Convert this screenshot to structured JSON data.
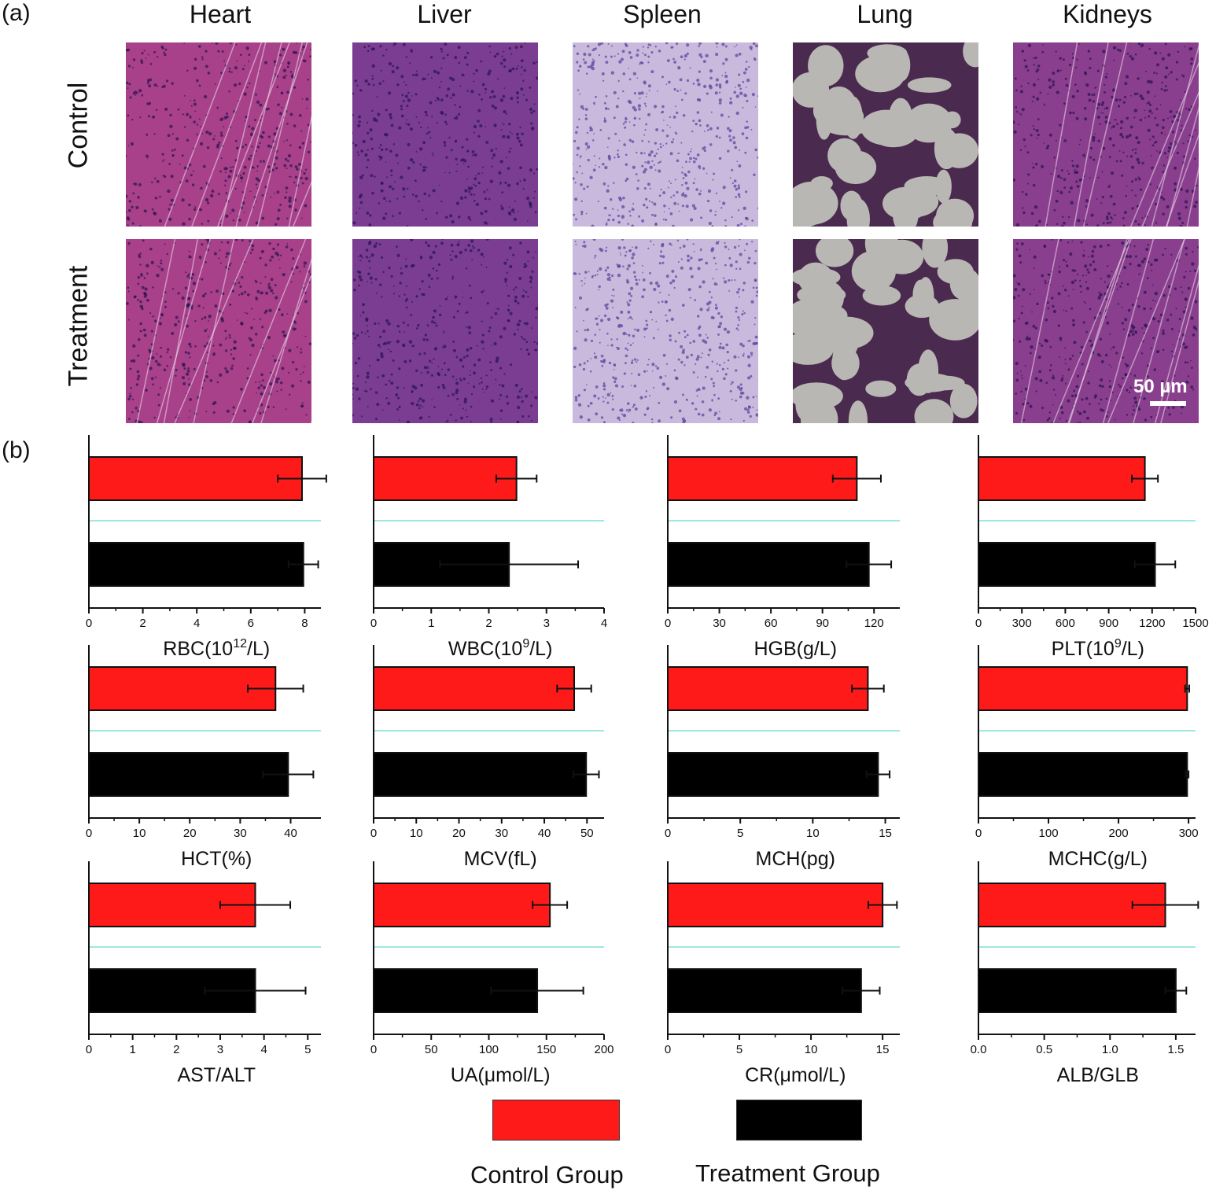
{
  "panel_labels": {
    "a": "(a)",
    "b": "(b)"
  },
  "histology": {
    "columns": [
      "Heart",
      "Liver",
      "Spleen",
      "Lung",
      "Kidneys"
    ],
    "rows": [
      "Control",
      "Treatment"
    ],
    "scale_bar": "50 µm"
  },
  "legend": {
    "control": {
      "label": "Control Group",
      "color": "#ff1a1a"
    },
    "treatment": {
      "label": "Treatment Group",
      "color": "#000000"
    }
  },
  "chart_data": [
    {
      "type": "bar",
      "xlabel_html": "RBC(10<sup>12</sup>/L)",
      "xlabel": "RBC(10^12/L)",
      "xlim": [
        0,
        8.6
      ],
      "ticks": [
        0,
        2,
        4,
        6,
        8
      ],
      "tick_labels": [
        "0",
        "2",
        "4",
        "6",
        "8"
      ],
      "series": [
        {
          "name": "Control Group",
          "value": 7.9,
          "error": 0.9
        },
        {
          "name": "Treatment Group",
          "value": 7.95,
          "error": 0.55
        }
      ]
    },
    {
      "type": "bar",
      "xlabel_html": "WBC(10<sup>9</sup>/L)",
      "xlabel": "WBC(10^9/L)",
      "xlim": [
        0,
        4.0
      ],
      "ticks": [
        0,
        1,
        2,
        3,
        4
      ],
      "tick_labels": [
        "0",
        "1",
        "2",
        "3",
        "4"
      ],
      "series": [
        {
          "name": "Control Group",
          "value": 2.48,
          "error": 0.35
        },
        {
          "name": "Treatment Group",
          "value": 2.35,
          "error": 1.2
        }
      ]
    },
    {
      "type": "bar",
      "xlabel_html": "HGB(g/L)",
      "xlabel": "HGB(g/L)",
      "xlim": [
        0,
        135
      ],
      "ticks": [
        0,
        30,
        60,
        90,
        120
      ],
      "tick_labels": [
        "0",
        "30",
        "60",
        "90",
        "120"
      ],
      "series": [
        {
          "name": "Control Group",
          "value": 110,
          "error": 14
        },
        {
          "name": "Treatment Group",
          "value": 117,
          "error": 13
        }
      ]
    },
    {
      "type": "bar",
      "xlabel_html": "PLT(10<sup>9</sup>/L)",
      "xlabel": "PLT(10^9/L)",
      "xlim": [
        0,
        1500
      ],
      "ticks": [
        0,
        300,
        600,
        900,
        1200,
        1500
      ],
      "tick_labels": [
        "0",
        "300",
        "600",
        "900",
        "1200",
        "1500"
      ],
      "series": [
        {
          "name": "Control Group",
          "value": 1150,
          "error": 90
        },
        {
          "name": "Treatment Group",
          "value": 1220,
          "error": 140
        }
      ]
    },
    {
      "type": "bar",
      "xlabel_html": "HCT(%)",
      "xlabel": "HCT(%)",
      "xlim": [
        0,
        46
      ],
      "ticks": [
        0,
        10,
        20,
        30,
        40
      ],
      "tick_labels": [
        "0",
        "10",
        "20",
        "30",
        "40"
      ],
      "series": [
        {
          "name": "Control Group",
          "value": 37,
          "error": 5.5
        },
        {
          "name": "Treatment Group",
          "value": 39.5,
          "error": 5
        }
      ]
    },
    {
      "type": "bar",
      "xlabel_html": "MCV(fL)",
      "xlabel": "MCV(fL)",
      "xlim": [
        0,
        54
      ],
      "ticks": [
        0,
        10,
        20,
        30,
        40,
        50
      ],
      "tick_labels": [
        "0",
        "10",
        "20",
        "30",
        "40",
        "50"
      ],
      "series": [
        {
          "name": "Control Group",
          "value": 47,
          "error": 4
        },
        {
          "name": "Treatment Group",
          "value": 49.8,
          "error": 3
        }
      ]
    },
    {
      "type": "bar",
      "xlabel_html": "MCH(pg)",
      "xlabel": "MCH(pg)",
      "xlim": [
        0,
        16
      ],
      "ticks": [
        0,
        5,
        10,
        15
      ],
      "tick_labels": [
        "0",
        "5",
        "10",
        "15"
      ],
      "series": [
        {
          "name": "Control Group",
          "value": 13.8,
          "error": 1.1
        },
        {
          "name": "Treatment Group",
          "value": 14.5,
          "error": 0.8
        }
      ]
    },
    {
      "type": "bar",
      "xlabel_html": "MCHC(g/L)",
      "xlabel": "MCHC(g/L)",
      "xlim": [
        0,
        310
      ],
      "ticks": [
        0,
        100,
        200,
        300
      ],
      "tick_labels": [
        "0",
        "100",
        "200",
        "300"
      ],
      "series": [
        {
          "name": "Control Group",
          "value": 298,
          "error": 3
        },
        {
          "name": "Treatment Group",
          "value": 298,
          "error": 2
        }
      ]
    },
    {
      "type": "bar",
      "xlabel_html": "AST/ALT",
      "xlabel": "AST/ALT",
      "xlim": [
        0,
        5.3
      ],
      "ticks": [
        0,
        1,
        2,
        3,
        4,
        5
      ],
      "tick_labels": [
        "0",
        "1",
        "2",
        "3",
        "4",
        "5"
      ],
      "series": [
        {
          "name": "Control Group",
          "value": 3.8,
          "error": 0.8
        },
        {
          "name": "Treatment Group",
          "value": 3.8,
          "error": 1.15
        }
      ]
    },
    {
      "type": "bar",
      "xlabel_html": "UA(μmol/L)",
      "xlabel": "UA(μmol/L)",
      "xlim": [
        0,
        200
      ],
      "ticks": [
        0,
        50,
        100,
        150,
        200
      ],
      "tick_labels": [
        "0",
        "50",
        "100",
        "150",
        "200"
      ],
      "series": [
        {
          "name": "Control Group",
          "value": 153,
          "error": 15
        },
        {
          "name": "Treatment Group",
          "value": 142,
          "error": 40
        }
      ]
    },
    {
      "type": "bar",
      "xlabel_html": "CR(μmol/L)",
      "xlabel": "CR(μmol/L)",
      "xlim": [
        0,
        16.2
      ],
      "ticks": [
        0,
        5,
        10,
        15
      ],
      "tick_labels": [
        "0",
        "5",
        "10",
        "15"
      ],
      "series": [
        {
          "name": "Control Group",
          "value": 15,
          "error": 1
        },
        {
          "name": "Treatment Group",
          "value": 13.5,
          "error": 1.3
        }
      ]
    },
    {
      "type": "bar",
      "xlabel_html": "ALB/GLB",
      "xlabel": "ALB/GLB",
      "xlim": [
        0,
        1.65
      ],
      "ticks": [
        0,
        0.5,
        1.0,
        1.5
      ],
      "tick_labels": [
        "0.0",
        "0.5",
        "1.0",
        "1.5"
      ],
      "series": [
        {
          "name": "Control Group",
          "value": 1.42,
          "error": 0.25
        },
        {
          "name": "Treatment Group",
          "value": 1.5,
          "error": 0.08
        }
      ]
    }
  ]
}
